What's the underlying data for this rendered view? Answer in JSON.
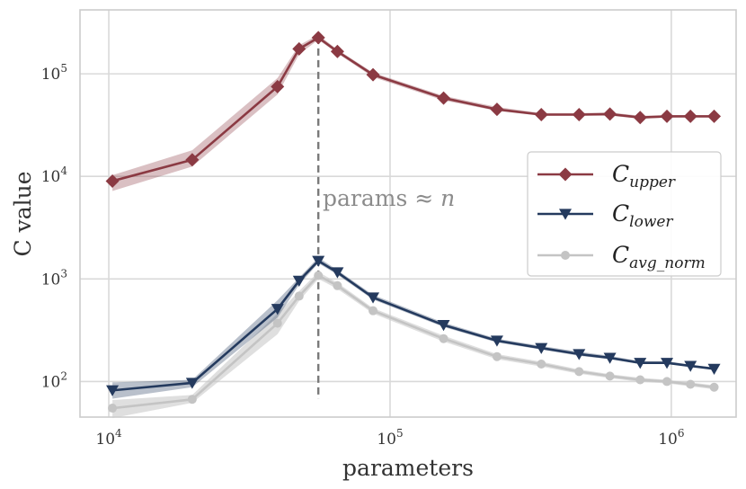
{
  "chart_data": {
    "type": "line",
    "xlabel": "parameters",
    "ylabel": "C value",
    "xscale": "log",
    "yscale": "log",
    "xlim": [
      7900,
      1700000
    ],
    "ylim": [
      45,
      420000
    ],
    "grid": true,
    "legend_position": "right",
    "x_ticks": [
      {
        "value": 10000,
        "base": "10",
        "exp": "4"
      },
      {
        "value": 100000,
        "base": "10",
        "exp": "5"
      },
      {
        "value": 1000000,
        "base": "10",
        "exp": "6"
      }
    ],
    "y_ticks": [
      {
        "value": 100,
        "base": "10",
        "exp": "2"
      },
      {
        "value": 1000,
        "base": "10",
        "exp": "3"
      },
      {
        "value": 10000,
        "base": "10",
        "exp": "4"
      },
      {
        "value": 100000,
        "base": "10",
        "exp": "5"
      }
    ],
    "x": [
      10300,
      19800,
      39800,
      47500,
      55600,
      65000,
      87000,
      155000,
      240000,
      345000,
      470000,
      605000,
      775000,
      965000,
      1170000,
      1420000
    ],
    "series": [
      {
        "name": "C",
        "sub": "upper",
        "color": "#8b3a43",
        "marker": "diamond",
        "values": [
          9000,
          14500,
          75000,
          175000,
          225000,
          165000,
          98000,
          58000,
          45000,
          40000,
          40000,
          40500,
          37500,
          38500,
          38500,
          38500
        ],
        "band_lower": [
          7200,
          12500,
          63000,
          155000,
          215000,
          158000,
          93000,
          55000,
          43500,
          39000,
          39000,
          39000,
          36500,
          37500,
          37800,
          38000
        ],
        "band_upper": [
          10300,
          18000,
          91000,
          190000,
          240000,
          172000,
          103000,
          61000,
          47500,
          41500,
          41500,
          42000,
          39000,
          39500,
          39500,
          39500
        ]
      },
      {
        "name": "C",
        "sub": "lower",
        "color": "#243a5e",
        "marker": "triangle-down",
        "values": [
          82,
          97,
          510,
          960,
          1500,
          1160,
          660,
          355,
          250,
          212,
          185,
          170,
          152,
          152,
          142,
          133
        ],
        "band_lower": [
          68,
          88,
          420,
          880,
          1420,
          1100,
          630,
          340,
          240,
          205,
          178,
          165,
          148,
          148,
          140,
          130
        ],
        "band_upper": [
          98,
          104,
          620,
          1030,
          1620,
          1220,
          700,
          375,
          262,
          222,
          195,
          178,
          158,
          158,
          146,
          137
        ]
      },
      {
        "name": "C",
        "sub": "avg_norm",
        "color": "#c4c4c4",
        "marker": "circle",
        "values": [
          55,
          67,
          370,
          680,
          1080,
          860,
          490,
          262,
          175,
          148,
          125,
          113,
          104,
          100,
          94,
          88
        ],
        "band_lower": [
          44,
          62,
          290,
          610,
          1000,
          800,
          460,
          245,
          165,
          140,
          119,
          108,
          99,
          96,
          90,
          84
        ],
        "band_upper": [
          66,
          74,
          460,
          760,
          1170,
          920,
          520,
          280,
          185,
          156,
          131,
          118,
          109,
          104,
          98,
          92
        ]
      }
    ],
    "vline": {
      "x": 55600,
      "y_from": 45,
      "y_to": 230000
    },
    "annotation": {
      "text": "params ≈ ",
      "var": "n",
      "x": 58000,
      "y": 4000
    }
  }
}
